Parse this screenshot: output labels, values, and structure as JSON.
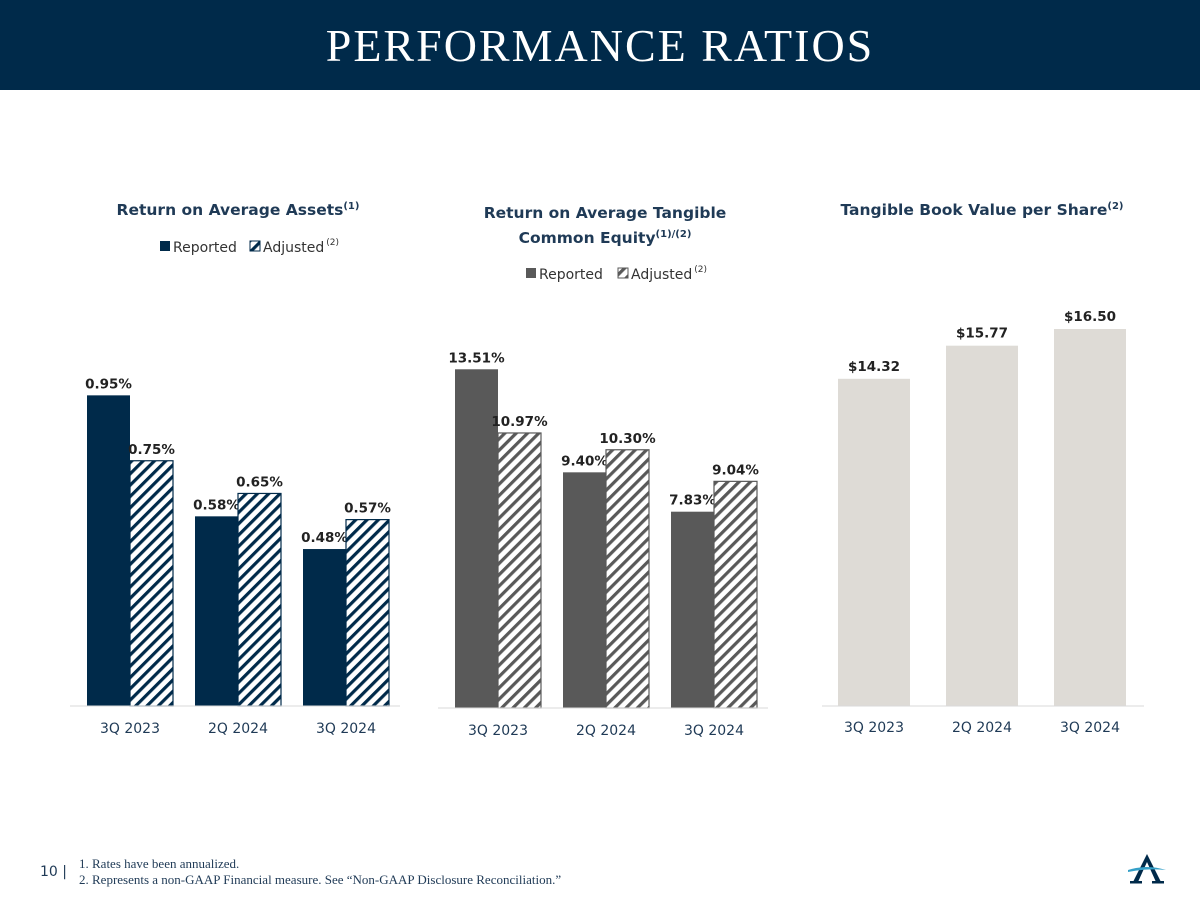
{
  "header": {
    "title": "PERFORMANCE RATIOS"
  },
  "colors": {
    "navy": "#002a4a",
    "gray": "#595959",
    "beige": "#dedbd6",
    "pattern_bg": "#ffffff"
  },
  "footer": {
    "page_number": "10 |",
    "notes": [
      "1. Rates have been annualized.",
      "2. Represents a non-GAAP Financial measure. See “Non-GAAP Disclosure Reconciliation.”"
    ],
    "logo_icon": "anchor-a-logo-icon"
  },
  "chart_data": [
    {
      "type": "bar",
      "title": "Return on Average Assets",
      "title_sup": "(1)",
      "categories": [
        "3Q 2023",
        "2Q 2024",
        "3Q 2024"
      ],
      "legend": [
        {
          "label": "Reported",
          "sup": ""
        },
        {
          "label": "Adjusted",
          "sup": "(2)"
        }
      ],
      "series": [
        {
          "name": "Reported",
          "values": [
            0.95,
            0.58,
            0.48
          ],
          "labels": [
            "0.95%",
            "0.58%",
            "0.48%"
          ]
        },
        {
          "name": "Adjusted",
          "values": [
            0.75,
            0.65,
            0.57
          ],
          "labels": [
            "0.75%",
            "0.65%",
            "0.57%"
          ]
        }
      ],
      "ylim": [
        0,
        1.0
      ],
      "grid": false,
      "legend_position": "top"
    },
    {
      "type": "bar",
      "title": "Return on Average Tangible Common Equity",
      "title_lines": [
        "Return on Average Tangible",
        "Common Equity"
      ],
      "title_sup": "(1)/(2)",
      "categories": [
        "3Q 2023",
        "2Q 2024",
        "3Q 2024"
      ],
      "legend": [
        {
          "label": "Reported",
          "sup": ""
        },
        {
          "label": "Adjusted",
          "sup": "(2)"
        }
      ],
      "series": [
        {
          "name": "Reported",
          "values": [
            13.51,
            9.4,
            7.83
          ],
          "labels": [
            "13.51%",
            "9.40%",
            "7.83%"
          ]
        },
        {
          "name": "Adjusted",
          "values": [
            10.97,
            10.3,
            9.04
          ],
          "labels": [
            "10.97%",
            "10.30%",
            "9.04%"
          ]
        }
      ],
      "ylim": [
        0,
        14
      ],
      "grid": false,
      "legend_position": "top"
    },
    {
      "type": "bar",
      "title": "Tangible Book Value per Share",
      "title_sup": "(2)",
      "categories": [
        "3Q 2023",
        "2Q 2024",
        "3Q 2024"
      ],
      "series": [
        {
          "values": [
            14.32,
            15.77,
            16.5
          ],
          "labels": [
            "$14.32",
            "$15.77",
            "$16.50"
          ]
        }
      ],
      "ylim": [
        0,
        17.5
      ],
      "grid": false
    }
  ]
}
